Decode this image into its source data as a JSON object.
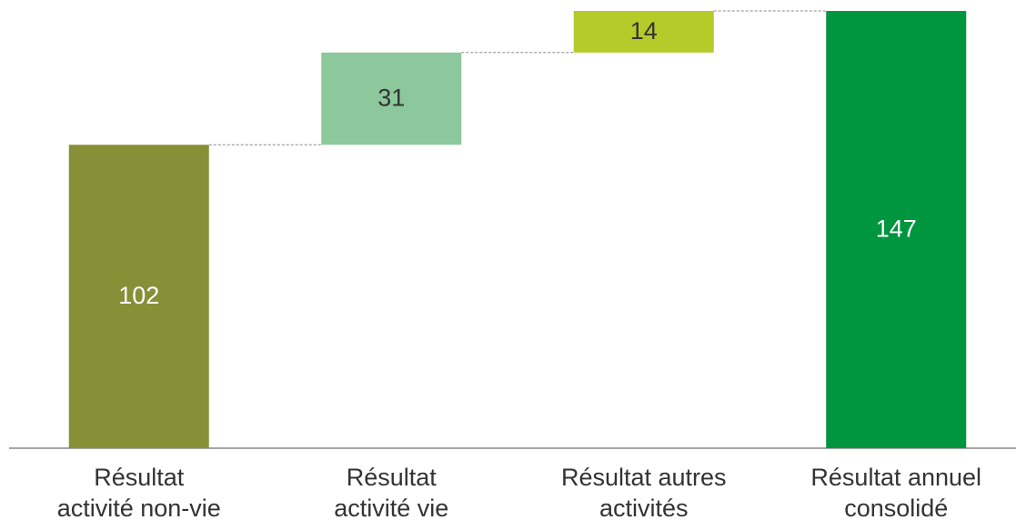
{
  "chart_data": {
    "type": "waterfall",
    "categories": [
      "Résultat\nactivité non-vie",
      "Résultat\nactivité vie",
      "Résultat autres\nactivités",
      "Résultat annuel\nconsolidé"
    ],
    "values": [
      102,
      31,
      14,
      147
    ],
    "colors": [
      "#878f37",
      "#8cc89b",
      "#b4cb2a",
      "#00953f"
    ],
    "label_colors": [
      "#ffffff",
      "#333333",
      "#333333",
      "#ffffff"
    ],
    "totals": [
      false,
      false,
      false,
      true
    ]
  }
}
